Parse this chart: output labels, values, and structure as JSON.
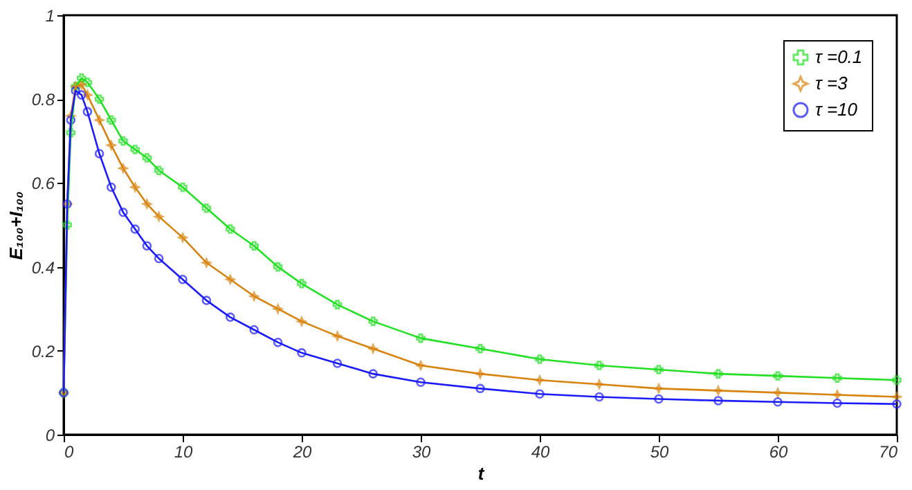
{
  "chart_data": {
    "type": "line",
    "xlabel": "t",
    "ylabel": "E₁₀₀+I₁₀₀",
    "x": [
      0,
      0.3,
      0.6,
      1,
      1.5,
      2,
      3,
      4,
      5,
      6,
      7,
      8,
      10,
      12,
      14,
      16,
      18,
      20,
      23,
      26,
      30,
      35,
      40,
      45,
      50,
      55,
      60,
      65,
      70
    ],
    "series": [
      {
        "name": "τ =0.1",
        "color": "#22e022",
        "marker": "cross",
        "values": [
          0.1,
          0.5,
          0.72,
          0.83,
          0.85,
          0.84,
          0.8,
          0.75,
          0.7,
          0.68,
          0.66,
          0.63,
          0.59,
          0.54,
          0.49,
          0.45,
          0.4,
          0.36,
          0.31,
          0.27,
          0.23,
          0.205,
          0.18,
          0.165,
          0.155,
          0.145,
          0.14,
          0.135,
          0.13
        ]
      },
      {
        "name": "τ =3",
        "color": "#d9820c",
        "marker": "star",
        "values": [
          0.1,
          0.55,
          0.76,
          0.83,
          0.835,
          0.81,
          0.75,
          0.69,
          0.635,
          0.59,
          0.55,
          0.52,
          0.47,
          0.41,
          0.37,
          0.33,
          0.3,
          0.27,
          0.235,
          0.205,
          0.165,
          0.145,
          0.13,
          0.12,
          0.11,
          0.105,
          0.1,
          0.095,
          0.09
        ]
      },
      {
        "name": "τ =10",
        "color": "#1a1aff",
        "marker": "circle",
        "values": [
          0.1,
          0.55,
          0.75,
          0.82,
          0.81,
          0.77,
          0.67,
          0.59,
          0.53,
          0.49,
          0.45,
          0.42,
          0.37,
          0.32,
          0.28,
          0.25,
          0.22,
          0.195,
          0.17,
          0.145,
          0.125,
          0.11,
          0.097,
          0.09,
          0.085,
          0.081,
          0.078,
          0.075,
          0.073
        ]
      }
    ],
    "xlim": [
      0,
      70
    ],
    "xticks": [
      0,
      10,
      20,
      30,
      40,
      50,
      60,
      70
    ],
    "ylim": [
      0,
      1
    ],
    "yticks": [
      {
        "value": 0,
        "label": "0"
      },
      0.2,
      0.4,
      0.6,
      0.8,
      {
        "value": 1,
        "label": "1"
      }
    ],
    "grid": false,
    "legend": "top right",
    "line_style": "solid"
  }
}
